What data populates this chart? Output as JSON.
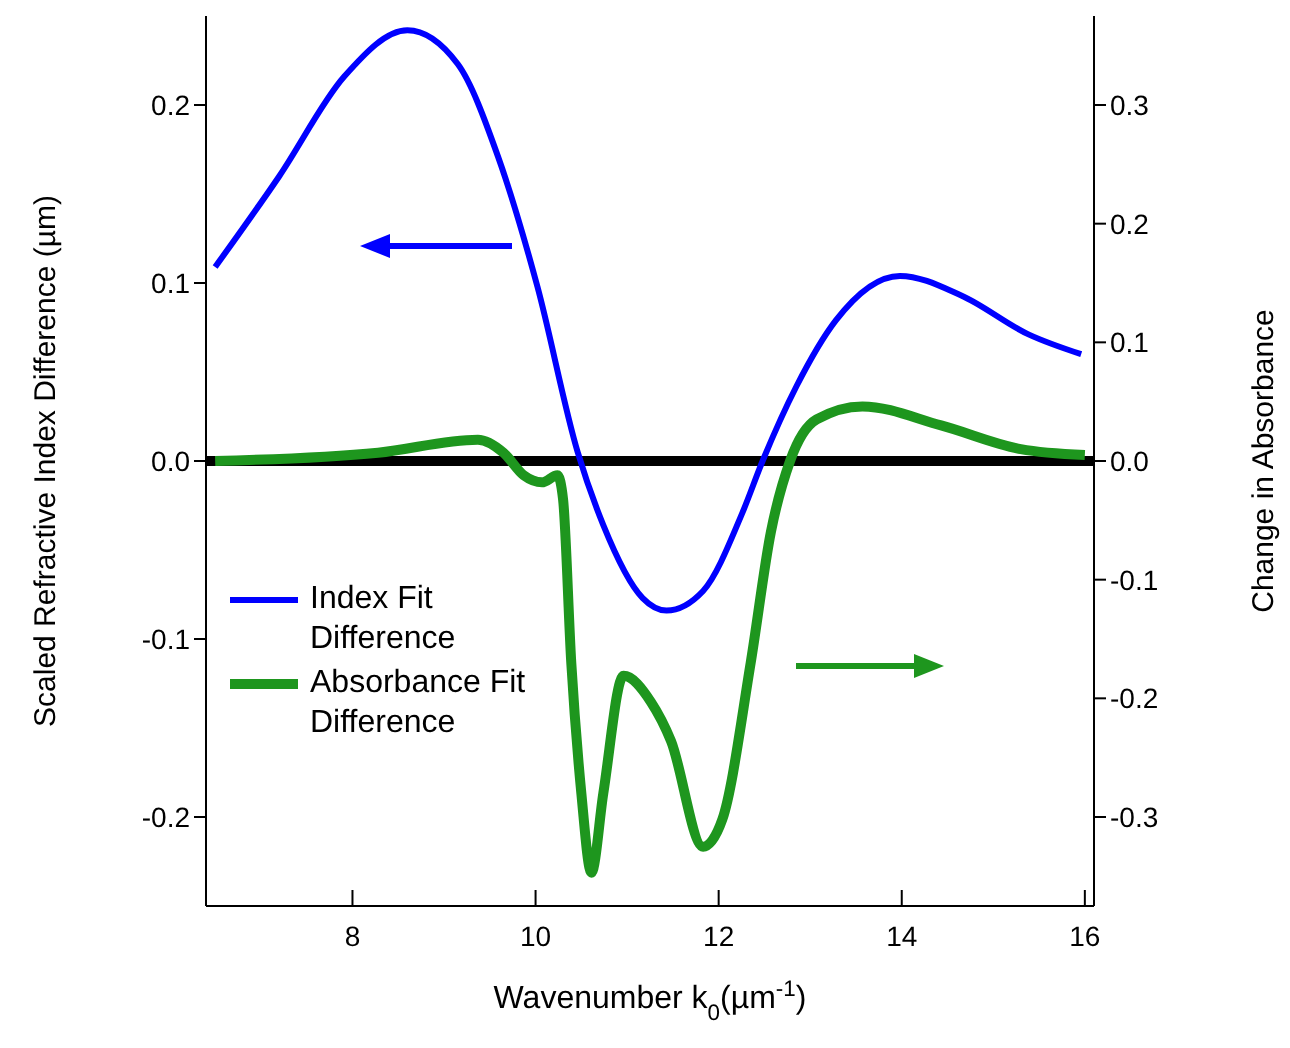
{
  "chart_data": {
    "type": "line",
    "xlabel": "Wavenumber k$_{0}$(µm$^{-1}$)",
    "ylabel": "Scaled Refractive Index Difference (µm)",
    "y2label": "Change in Absorbance",
    "xlim": [
      6.4,
      16.1
    ],
    "xticks": [
      8,
      10,
      12,
      14,
      16
    ],
    "ylim": [
      -0.25,
      0.25
    ],
    "yticks": [
      -0.2,
      -0.1,
      {
        "value": 0,
        "label": "0.0"
      },
      0.1,
      0.2
    ],
    "y2lim": [
      -0.375,
      0.375
    ],
    "y2ticks": [
      -0.3,
      -0.2,
      -0.1,
      {
        "value": 0,
        "label": "0.0"
      },
      0.1,
      0.2,
      0.3
    ],
    "grid": false,
    "legend": "left",
    "marker": "none",
    "line_style": "solid",
    "ref_lines": [
      {
        "axis": "y",
        "value": 0,
        "color": "#000000"
      }
    ],
    "series": [
      {
        "name": "Index Fit Difference",
        "color": "#0000ff",
        "x": [
          6.5,
          7.2,
          7.91,
          8.6,
          9.15,
          9.59,
          10.02,
          10.46,
          10.74,
          11.17,
          11.43,
          11.83,
          12.26,
          12.48,
          12.85,
          13.28,
          13.98,
          14.65,
          15.39,
          15.96
        ],
        "values": [
          0.109,
          0.16,
          0.216,
          0.242,
          0.223,
          0.171,
          0.098,
          0.005,
          -0.036,
          -0.077,
          -0.084,
          -0.073,
          -0.029,
          0,
          0.042,
          0.079,
          0.104,
          0.093,
          0.071,
          0.06
        ]
      },
      {
        "name": "Absorbance Fit Difference",
        "color": "#1e961e",
        "axis": "y2",
        "x": [
          6.5,
          8.28,
          9.37,
          9.65,
          9.87,
          10.07,
          10.24,
          10.3,
          10.39,
          10.5,
          10.61,
          10.74,
          10.96,
          11.26,
          11.48,
          11.83,
          12.04,
          12.35,
          12.57,
          12.78,
          13.07,
          13.57,
          14.43,
          15.3,
          16.0
        ],
        "values": [
          0,
          0.007,
          0.018,
          0.007,
          -0.012,
          -0.018,
          -0.012,
          -0.032,
          -0.17,
          -0.28,
          -0.347,
          -0.28,
          -0.181,
          -0.203,
          -0.236,
          -0.325,
          -0.302,
          -0.17,
          -0.06,
          0,
          0.035,
          0.046,
          0.03,
          0.01,
          0.005
        ]
      }
    ]
  }
}
